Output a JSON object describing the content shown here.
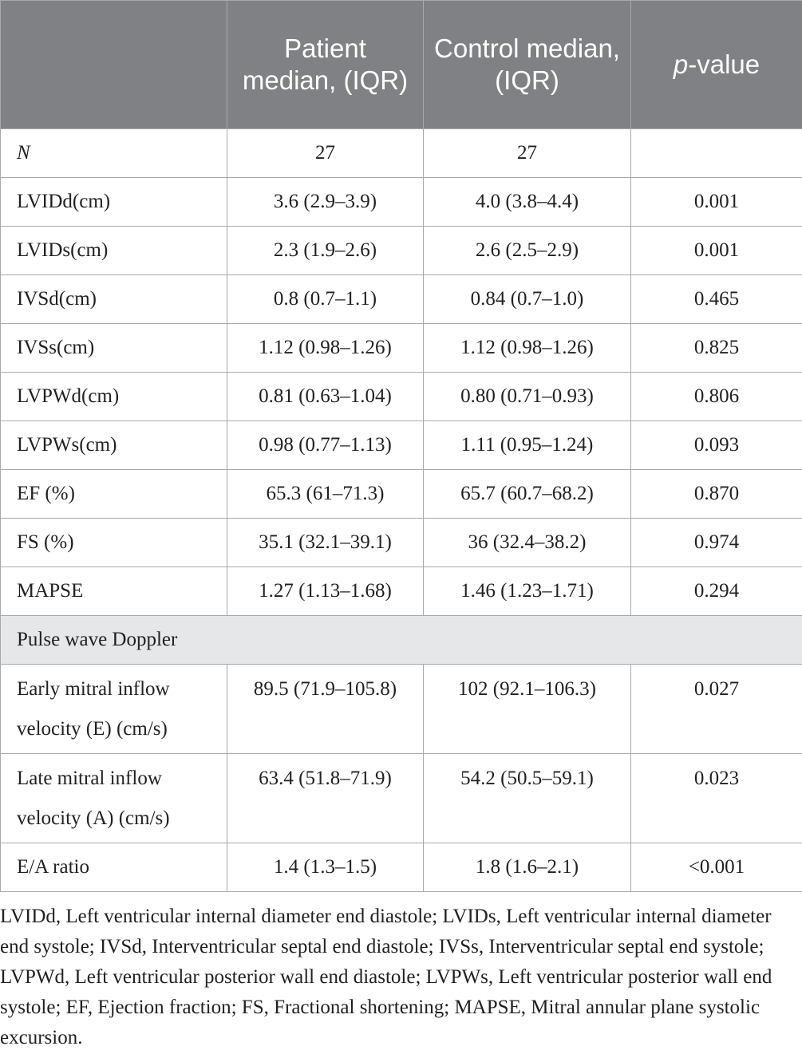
{
  "header": {
    "col1": "",
    "col2": "Patient median, (IQR)",
    "col3": "Control median, (IQR)",
    "col4_italic": "p",
    "col4_rest": "-value"
  },
  "rows": [
    {
      "label": "N",
      "patient": "27",
      "control": "27",
      "p": ""
    },
    {
      "label": "LVIDd(cm)",
      "patient": "3.6 (2.9–3.9)",
      "control": "4.0 (3.8–4.4)",
      "p": "0.001"
    },
    {
      "label": "LVIDs(cm)",
      "patient": "2.3 (1.9–2.6)",
      "control": "2.6 (2.5–2.9)",
      "p": "0.001"
    },
    {
      "label": "IVSd(cm)",
      "patient": "0.8 (0.7–1.1)",
      "control": "0.84 (0.7–1.0)",
      "p": "0.465"
    },
    {
      "label": "IVSs(cm)",
      "patient": "1.12 (0.98–1.26)",
      "control": "1.12 (0.98–1.26)",
      "p": "0.825"
    },
    {
      "label": "LVPWd(cm)",
      "patient": "0.81 (0.63–1.04)",
      "control": "0.80 (0.71–0.93)",
      "p": "0.806"
    },
    {
      "label": "LVPWs(cm)",
      "patient": "0.98 (0.77–1.13)",
      "control": "1.11 (0.95–1.24)",
      "p": "0.093"
    },
    {
      "label": "EF (%)",
      "patient": "65.3 (61–71.3)",
      "control": "65.7 (60.7–68.2)",
      "p": "0.870"
    },
    {
      "label": "FS (%)",
      "patient": "35.1 (32.1–39.1)",
      "control": "36 (32.4–38.2)",
      "p": "0.974"
    },
    {
      "label": "MAPSE",
      "patient": "1.27 (1.13–1.68)",
      "control": "1.46 (1.23–1.71)",
      "p": "0.294"
    }
  ],
  "section": "Pulse wave Doppler",
  "rows2": [
    {
      "label": "Early mitral inflow velocity (E) (cm/s)",
      "patient": "89.5 (71.9–105.8)",
      "control": "102 (92.1–106.3)",
      "p": "0.027"
    },
    {
      "label": "Late mitral inflow velocity (A) (cm/s)",
      "patient": "63.4 (51.8–71.9)",
      "control": "54.2 (50.5–59.1)",
      "p": "0.023"
    },
    {
      "label": "E/A ratio",
      "patient": "1.4 (1.3–1.5)",
      "control": "1.8 (1.6–2.1)",
      "p": "<0.001"
    }
  ],
  "footnote": "LVIDd, Left ventricular internal diameter end diastole; LVIDs, Left ventricular internal diameter end systole; IVSd, Interventricular septal end diastole; IVSs, Interventricular septal end systole; LVPWd, Left ventricular posterior wall end diastole; LVPWs, Left ventricular posterior wall end systole; EF, Ejection fraction; FS, Fractional shortening; MAPSE, Mitral annular plane systolic excursion."
}
